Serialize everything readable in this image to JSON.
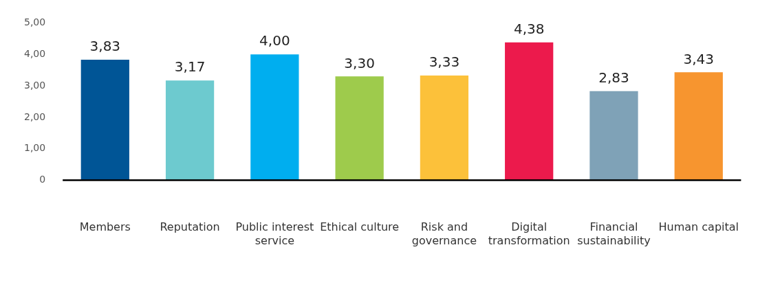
{
  "chart_data": {
    "type": "bar",
    "categories": [
      "Members",
      "Reputation",
      "Public interest service",
      "Ethical culture",
      "Risk and governance",
      "Digital transformation",
      "Financial sustainability",
      "Human capital"
    ],
    "values": [
      3.83,
      3.17,
      4.0,
      3.3,
      3.33,
      4.38,
      2.83,
      3.43
    ],
    "colors": [
      "#005596",
      "#6dcacf",
      "#00aeef",
      "#9ecb4c",
      "#fcc13a",
      "#ec1a4c",
      "#7fa2b7",
      "#f7952f"
    ],
    "value_labels": [
      "3,83",
      "3,17",
      "4,00",
      "3,30",
      "3,33",
      "4,38",
      "2,83",
      "3,43"
    ],
    "ylim": [
      0,
      5
    ],
    "yticks": [
      0,
      {
        "value": 1,
        "label": "1,00"
      },
      {
        "value": 2,
        "label": "2,00"
      },
      {
        "value": 3,
        "label": "3,00"
      },
      {
        "value": 4,
        "label": "4,00"
      },
      {
        "value": 5,
        "label": "5,00"
      }
    ],
    "grid": false,
    "legend": false
  }
}
